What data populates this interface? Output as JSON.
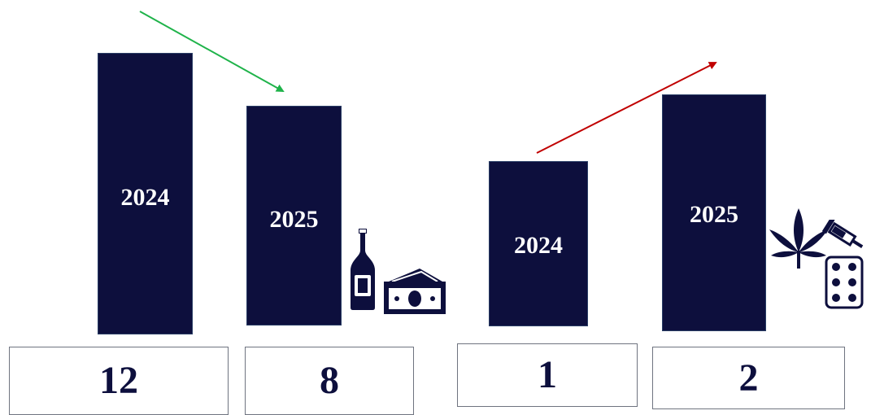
{
  "chart_data": [
    {
      "type": "bar",
      "categories": [
        "2024",
        "2025"
      ],
      "values": [
        12,
        8
      ],
      "trend": "decrease",
      "trend_color": "#1fb34a",
      "icons": [
        "bottle-icon",
        "money-icon"
      ]
    },
    {
      "type": "bar",
      "categories": [
        "2024",
        "2025"
      ],
      "values": [
        1,
        2
      ],
      "trend": "increase",
      "trend_color": "#c00000",
      "icons": [
        "cannabis-leaf-icon",
        "syringe-icon",
        "pills-icon"
      ]
    }
  ],
  "colors": {
    "bar": "#0d0f3d",
    "value_text": "#0d0f3d",
    "bar_label": "#ffffff"
  },
  "groups": [
    {
      "bars": [
        {
          "label": "2024",
          "value": "12"
        },
        {
          "label": "2025",
          "value": "8"
        }
      ]
    },
    {
      "bars": [
        {
          "label": "2024",
          "value": "1"
        },
        {
          "label": "2025",
          "value": "2"
        }
      ]
    }
  ]
}
